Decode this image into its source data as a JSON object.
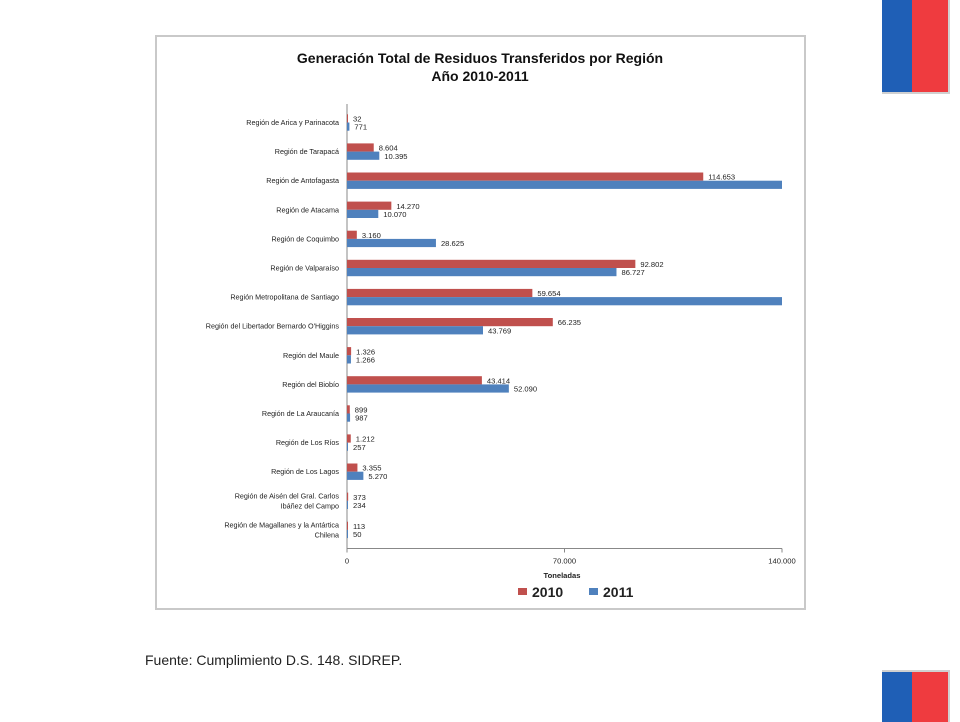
{
  "colors": {
    "series_2010": "#c0504d",
    "series_2011": "#4f81bd",
    "flag_blue": "#1f5fb6",
    "flag_red": "#ef3b3f"
  },
  "source_note": "Fuente: Cumplimiento D.S. 148. SIDREP.",
  "chart_data": {
    "type": "bar",
    "orientation": "horizontal",
    "title": "Generación Total de Residuos Transferidos por Región",
    "subtitle": "Año 2010-2011",
    "xlabel": "Toneladas",
    "xlim": [
      0,
      140000
    ],
    "xticks": [
      0,
      70000,
      140000
    ],
    "xtick_labels": [
      "0",
      "70.000",
      "140.000"
    ],
    "legend_position": "bottom",
    "categories": [
      "Región de Arica y Parinacota",
      "Región de Tarapacá",
      "Región de Antofagasta",
      "Región de Atacama",
      "Región de Coquimbo",
      "Región de Valparaíso",
      "Región Metropolitana de Santiago",
      "Región del Libertador Bernardo O'Higgins",
      "Región del Maule",
      "Región del Biobío",
      "Región de La Araucanía",
      "Región de Los Ríos",
      "Región de Los Lagos",
      "Región de Aisén del Gral. Carlos Ibáñez del Campo",
      "Región de Magallanes y la Antártica Chilena"
    ],
    "series": [
      {
        "name": "2010",
        "values": [
          32,
          8604,
          114653,
          14270,
          3160,
          92802,
          59654,
          66235,
          1326,
          43414,
          899,
          1212,
          3355,
          373,
          113
        ],
        "labels": [
          "32",
          "8.604",
          "114.653",
          "14.270",
          "3.160",
          "92.802",
          "59.654",
          "66.235",
          "1.326",
          "43.414",
          "899",
          "1.212",
          "3.355",
          "373",
          "113"
        ]
      },
      {
        "name": "2011",
        "values": [
          771,
          10395,
          140000,
          10070,
          28625,
          86727,
          140000,
          43769,
          1266,
          52090,
          987,
          257,
          5270,
          234,
          50
        ],
        "labels": [
          "771",
          "10.395",
          "",
          "10.070",
          "28.625",
          "86.727",
          "",
          "43.769",
          "1.266",
          "52.090",
          "987",
          "257",
          "5.270",
          "234",
          "50"
        ]
      }
    ]
  }
}
